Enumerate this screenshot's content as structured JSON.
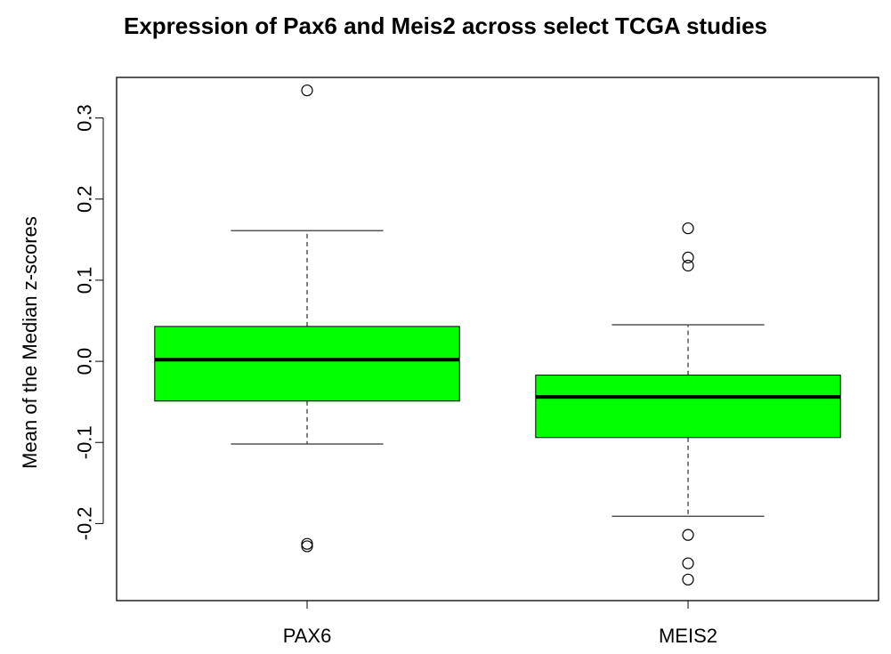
{
  "chart_data": {
    "type": "boxplot",
    "title": "Expression of Pax6 and Meis2 across select TCGA studies",
    "xlabel": "",
    "ylabel": "Mean of the Median z-scores",
    "ylim": [
      -0.295,
      0.35
    ],
    "yticks": [
      -0.2,
      -0.1,
      0.0,
      0.1,
      0.2,
      0.3
    ],
    "ytick_labels": [
      "-0.2",
      "-0.1",
      "0.0",
      "0.1",
      "0.2",
      "0.3"
    ],
    "categories": [
      "PAX6",
      "MEIS2"
    ],
    "box_color": "#00ff00",
    "boxes": [
      {
        "label": "PAX6",
        "whisker_low": -0.102,
        "q1": -0.049,
        "median": 0.002,
        "q3": 0.043,
        "whisker_high": 0.161,
        "outliers": [
          0.334,
          -0.225,
          -0.228
        ]
      },
      {
        "label": "MEIS2",
        "whisker_low": -0.191,
        "q1": -0.094,
        "median": -0.044,
        "q3": -0.017,
        "whisker_high": 0.045,
        "outliers": [
          0.164,
          0.128,
          0.118,
          -0.214,
          -0.249,
          -0.269
        ]
      }
    ]
  }
}
